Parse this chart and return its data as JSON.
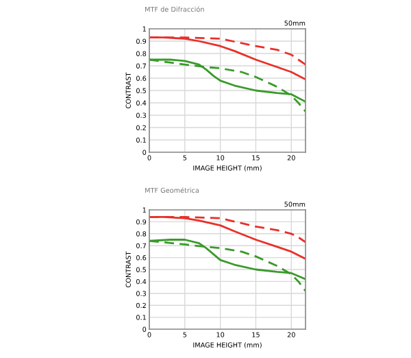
{
  "chart_data": [
    {
      "type": "line",
      "title": "MTF de Difracción",
      "xlabel": "IMAGE HEIGHT (mm)",
      "ylabel": "CONTRAST",
      "annotations": [
        "50mm"
      ],
      "grid": true,
      "xlim": [
        0,
        22
      ],
      "xticks": [
        0,
        5,
        10,
        15,
        20
      ],
      "ylim": [
        0,
        1
      ],
      "yticks": [
        0,
        0.1,
        0.2,
        0.3,
        0.4,
        0.5,
        0.6,
        0.7,
        0.8,
        0.9,
        1
      ],
      "series": [
        {
          "color": "#e8302a",
          "line_style": "solid",
          "x": [
            0,
            2,
            5,
            7,
            10,
            12,
            15,
            18,
            20,
            22
          ],
          "values": [
            0.93,
            0.93,
            0.92,
            0.9,
            0.86,
            0.82,
            0.75,
            0.69,
            0.65,
            0.59
          ]
        },
        {
          "color": "#e8302a",
          "line_style": "dashed",
          "x": [
            0,
            5,
            10,
            15,
            18,
            20,
            21,
            22
          ],
          "values": [
            0.93,
            0.93,
            0.92,
            0.86,
            0.83,
            0.79,
            0.75,
            0.71
          ]
        },
        {
          "color": "#3a9a2a",
          "line_style": "solid",
          "x": [
            0,
            3,
            5,
            7,
            8,
            9,
            10,
            12,
            15,
            18,
            20,
            22
          ],
          "values": [
            0.75,
            0.75,
            0.74,
            0.71,
            0.67,
            0.62,
            0.58,
            0.54,
            0.5,
            0.48,
            0.47,
            0.41
          ]
        },
        {
          "color": "#3a9a2a",
          "line_style": "dashed",
          "x": [
            0,
            5,
            8,
            10,
            13,
            15,
            18,
            20,
            21,
            22
          ],
          "values": [
            0.75,
            0.71,
            0.69,
            0.68,
            0.65,
            0.61,
            0.53,
            0.46,
            0.4,
            0.33
          ]
        }
      ]
    },
    {
      "type": "line",
      "title": "MTF Geométrica",
      "xlabel": "IMAGE HEIGHT (mm)",
      "ylabel": "CONTRAST",
      "annotations": [
        "50mm"
      ],
      "grid": true,
      "xlim": [
        0,
        22
      ],
      "xticks": [
        0,
        5,
        10,
        15,
        20
      ],
      "ylim": [
        0,
        1
      ],
      "yticks": [
        0,
        0.1,
        0.2,
        0.3,
        0.4,
        0.5,
        0.6,
        0.7,
        0.8,
        0.9,
        1
      ],
      "series": [
        {
          "color": "#e8302a",
          "line_style": "solid",
          "x": [
            0,
            2,
            5,
            7,
            10,
            12,
            15,
            18,
            20,
            22
          ],
          "values": [
            0.94,
            0.94,
            0.93,
            0.91,
            0.87,
            0.82,
            0.75,
            0.69,
            0.65,
            0.59
          ]
        },
        {
          "color": "#e8302a",
          "line_style": "dashed",
          "x": [
            0,
            5,
            10,
            15,
            18,
            20,
            21,
            22
          ],
          "values": [
            0.94,
            0.94,
            0.93,
            0.86,
            0.83,
            0.8,
            0.77,
            0.73
          ]
        },
        {
          "color": "#3a9a2a",
          "line_style": "solid",
          "x": [
            0,
            3,
            5,
            7,
            8,
            9,
            10,
            12,
            15,
            18,
            20,
            22
          ],
          "values": [
            0.74,
            0.75,
            0.75,
            0.72,
            0.68,
            0.63,
            0.58,
            0.54,
            0.5,
            0.48,
            0.47,
            0.42
          ]
        },
        {
          "color": "#3a9a2a",
          "line_style": "dashed",
          "x": [
            0,
            5,
            8,
            10,
            13,
            15,
            18,
            20,
            21,
            22
          ],
          "values": [
            0.74,
            0.71,
            0.69,
            0.68,
            0.65,
            0.61,
            0.53,
            0.46,
            0.4,
            0.32
          ]
        }
      ]
    }
  ]
}
